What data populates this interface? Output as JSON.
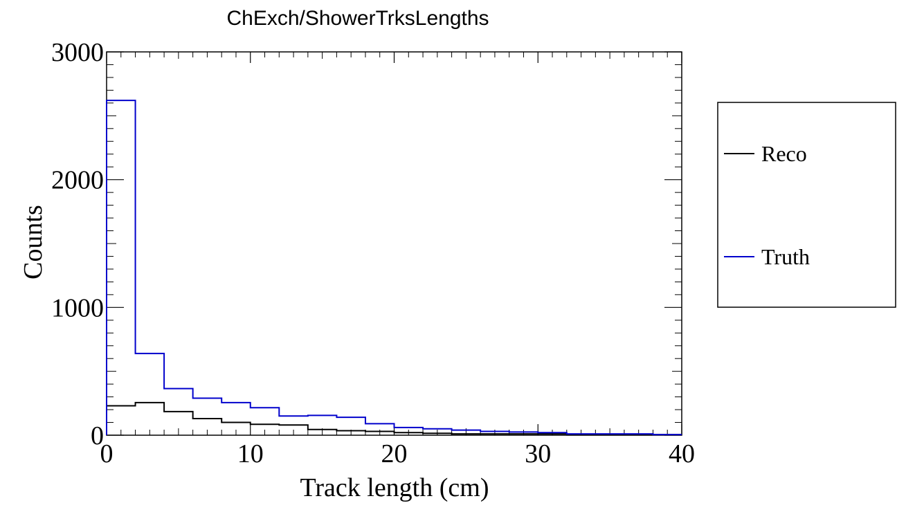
{
  "chart_data": {
    "type": "line",
    "title": "ChExch/ShowerTrksLengths",
    "xlabel": "Track length (cm)",
    "ylabel": "Counts",
    "xlim": [
      0,
      40
    ],
    "ylim": [
      0,
      3000
    ],
    "xticks": [
      0,
      10,
      20,
      30,
      40
    ],
    "yticks": [
      0,
      1000,
      2000,
      3000
    ],
    "xtick_labels": [
      "0",
      "10",
      "20",
      "30",
      "40"
    ],
    "ytick_labels": [
      "0",
      "1000",
      "2000",
      "3000"
    ],
    "bin_edges": [
      0,
      2,
      4,
      6,
      8,
      10,
      12,
      14,
      16,
      18,
      20,
      22,
      24,
      26,
      28,
      30,
      32,
      34,
      36,
      38,
      40
    ],
    "series": [
      {
        "name": "Reco",
        "color": "#000000",
        "values": [
          230,
          255,
          185,
          130,
          100,
          85,
          80,
          45,
          35,
          30,
          20,
          15,
          10,
          10,
          10,
          10,
          5,
          5,
          5,
          5
        ]
      },
      {
        "name": "Truth",
        "color": "#0000cc",
        "values": [
          2620,
          640,
          365,
          290,
          255,
          215,
          150,
          155,
          140,
          90,
          60,
          50,
          40,
          30,
          25,
          20,
          10,
          10,
          10,
          5
        ]
      }
    ],
    "grid": false,
    "legend_position": "right"
  }
}
